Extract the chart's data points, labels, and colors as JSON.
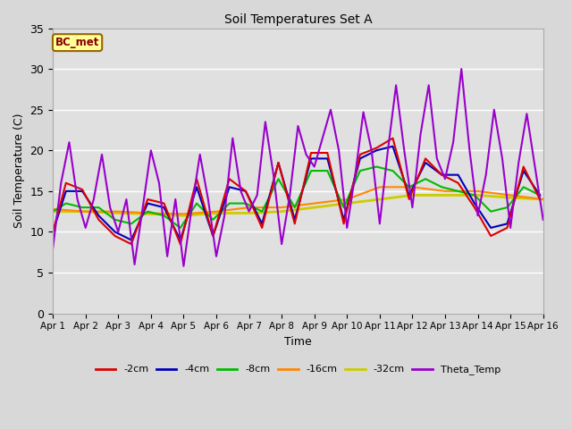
{
  "title": "Soil Temperatures Set A",
  "xlabel": "Time",
  "ylabel": "Soil Temperature (C)",
  "ylim": [
    0,
    35
  ],
  "xlim": [
    0,
    15
  ],
  "yticks": [
    0,
    5,
    10,
    15,
    20,
    25,
    30,
    35
  ],
  "xtick_labels": [
    "Apr 1",
    "Apr 2",
    "Apr 3",
    "Apr 4",
    "Apr 5",
    "Apr 6",
    "Apr 7",
    "Apr 8",
    "Apr 9",
    "Apr 10",
    "Apr 11",
    "Apr 12",
    "Apr 13",
    "Apr 14",
    "Apr 15",
    "Apr 16"
  ],
  "annotation_text": "BC_met",
  "annotation_bg": "#ffff99",
  "annotation_border": "#996600",
  "plot_bg_color": "#e0e0e0",
  "fig_bg_color": "#d8d8d8",
  "grid_color": "#ffffff",
  "series": {
    "m2cm": {
      "label": "-2cm",
      "color": "#dd0000",
      "lw": 1.5,
      "x": [
        0,
        0.4,
        0.9,
        1.4,
        1.9,
        2.4,
        2.9,
        3.4,
        3.9,
        4.4,
        4.9,
        5.4,
        5.9,
        6.4,
        6.9,
        7.4,
        7.9,
        8.4,
        8.9,
        9.4,
        9.9,
        10.4,
        10.9,
        11.4,
        11.9,
        12.4,
        12.9,
        13.4,
        13.9,
        14.4,
        14.9
      ],
      "y": [
        10.0,
        16.0,
        15.2,
        11.5,
        9.5,
        8.5,
        14.0,
        13.5,
        8.5,
        16.5,
        9.5,
        16.5,
        15.0,
        10.5,
        18.5,
        11.0,
        19.7,
        19.7,
        11.0,
        19.5,
        20.3,
        21.5,
        14.0,
        19.0,
        17.0,
        16.0,
        13.0,
        9.5,
        10.5,
        18.0,
        14.0
      ]
    },
    "m4cm": {
      "label": "-4cm",
      "color": "#0000bb",
      "lw": 1.5,
      "x": [
        0,
        0.4,
        0.9,
        1.4,
        1.9,
        2.4,
        2.9,
        3.4,
        3.9,
        4.4,
        4.9,
        5.4,
        5.9,
        6.4,
        6.9,
        7.4,
        7.9,
        8.4,
        8.9,
        9.4,
        9.9,
        10.4,
        10.9,
        11.4,
        11.9,
        12.4,
        12.9,
        13.4,
        13.9,
        14.4,
        14.9
      ],
      "y": [
        10.0,
        15.0,
        15.0,
        12.0,
        10.0,
        9.0,
        13.5,
        13.0,
        9.0,
        15.5,
        9.5,
        15.5,
        15.0,
        11.0,
        18.5,
        11.5,
        19.0,
        19.0,
        11.5,
        19.0,
        20.0,
        20.5,
        14.5,
        18.5,
        17.0,
        17.0,
        13.5,
        10.5,
        11.0,
        17.5,
        14.5
      ]
    },
    "m8cm": {
      "label": "-8cm",
      "color": "#00bb00",
      "lw": 1.5,
      "x": [
        0,
        0.4,
        0.9,
        1.4,
        1.9,
        2.4,
        2.9,
        3.4,
        3.9,
        4.4,
        4.9,
        5.4,
        5.9,
        6.4,
        6.9,
        7.4,
        7.9,
        8.4,
        8.9,
        9.4,
        9.9,
        10.4,
        10.9,
        11.4,
        11.9,
        12.4,
        12.9,
        13.4,
        13.9,
        14.4,
        14.9
      ],
      "y": [
        12.5,
        13.5,
        13.0,
        13.0,
        11.5,
        11.0,
        12.5,
        12.0,
        10.5,
        13.5,
        11.5,
        13.5,
        13.5,
        12.5,
        16.5,
        13.0,
        17.5,
        17.5,
        13.0,
        17.5,
        18.0,
        17.5,
        15.5,
        16.5,
        15.5,
        15.0,
        14.5,
        12.5,
        13.0,
        15.5,
        14.5
      ]
    },
    "m16cm": {
      "label": "-16cm",
      "color": "#ff8800",
      "lw": 1.5,
      "x": [
        0,
        1.0,
        2.0,
        3.0,
        4.0,
        5.0,
        6.0,
        7.0,
        8.0,
        9.0,
        10.0,
        11.0,
        12.0,
        13.0,
        14.0,
        15.0
      ],
      "y": [
        12.8,
        12.5,
        12.5,
        12.3,
        12.2,
        12.5,
        13.0,
        13.0,
        13.5,
        14.0,
        15.5,
        15.5,
        15.0,
        15.0,
        14.5,
        14.0
      ]
    },
    "m32cm": {
      "label": "-32cm",
      "color": "#cccc00",
      "lw": 2.0,
      "x": [
        0,
        1.0,
        2.0,
        3.0,
        4.0,
        5.0,
        6.0,
        7.0,
        8.0,
        9.0,
        10.0,
        11.0,
        12.0,
        13.0,
        14.0,
        15.0
      ],
      "y": [
        12.5,
        12.5,
        12.3,
        12.2,
        12.0,
        12.3,
        12.3,
        12.5,
        13.0,
        13.5,
        14.0,
        14.5,
        14.5,
        14.5,
        14.2,
        14.0
      ]
    },
    "theta": {
      "label": "Theta_Temp",
      "color": "#9900cc",
      "lw": 1.5,
      "x": [
        0,
        0.25,
        0.5,
        0.75,
        1.0,
        1.25,
        1.5,
        1.75,
        2.0,
        2.25,
        2.5,
        2.75,
        3.0,
        3.25,
        3.5,
        3.75,
        4.0,
        4.25,
        4.5,
        4.75,
        5.0,
        5.25,
        5.5,
        5.75,
        6.0,
        6.25,
        6.5,
        6.75,
        7.0,
        7.25,
        7.5,
        7.75,
        8.0,
        8.25,
        8.5,
        8.75,
        9.0,
        9.25,
        9.5,
        9.75,
        10.0,
        10.25,
        10.5,
        10.75,
        11.0,
        11.25,
        11.5,
        11.75,
        12.0,
        12.25,
        12.5,
        12.75,
        13.0,
        13.25,
        13.5,
        13.75,
        14.0,
        14.25,
        14.5,
        14.75,
        15.0
      ],
      "y": [
        8.0,
        16.0,
        21.0,
        14.0,
        10.5,
        14.0,
        19.5,
        13.0,
        10.0,
        14.0,
        6.0,
        13.0,
        20.0,
        16.0,
        7.0,
        14.0,
        5.8,
        13.0,
        19.5,
        14.0,
        7.0,
        12.0,
        21.5,
        15.0,
        12.5,
        14.5,
        23.5,
        17.0,
        8.5,
        14.5,
        23.0,
        19.5,
        18.0,
        21.5,
        25.0,
        20.0,
        10.5,
        17.0,
        24.7,
        20.0,
        11.0,
        20.0,
        28.0,
        20.0,
        13.0,
        22.0,
        28.0,
        19.0,
        16.5,
        21.0,
        30.0,
        20.0,
        12.0,
        17.0,
        25.0,
        19.0,
        10.5,
        18.5,
        24.5,
        18.0,
        11.5
      ]
    }
  }
}
